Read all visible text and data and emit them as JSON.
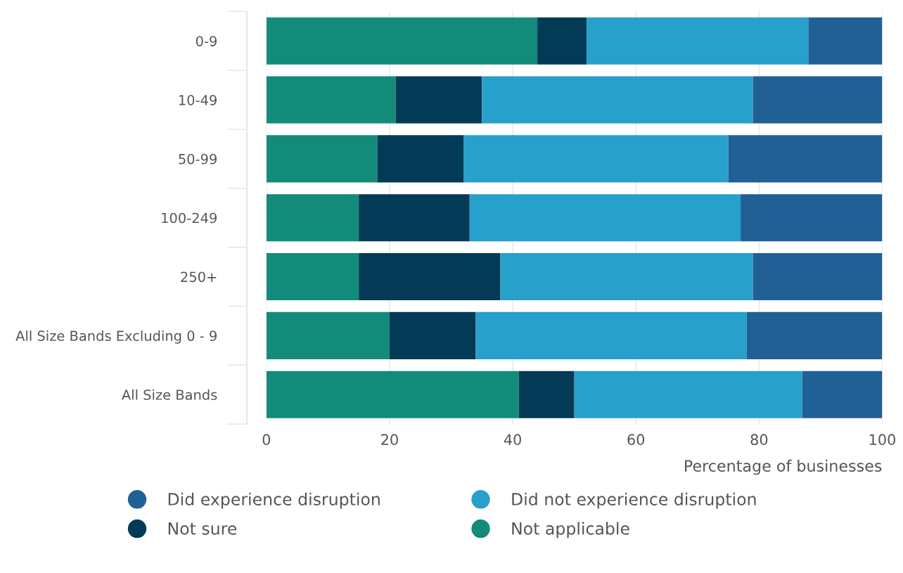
{
  "chart_data": {
    "type": "bar",
    "orientation": "horizontal",
    "stacked": true,
    "categories": [
      "0-9",
      "10-49",
      "50-99",
      "100-249",
      "250+",
      "All Size Bands Excluding 0 - 9",
      "All Size Bands"
    ],
    "series": [
      {
        "name": "Not applicable",
        "color": "#138b7a",
        "values": [
          44,
          21,
          18,
          15,
          15,
          20,
          41
        ]
      },
      {
        "name": "Not sure",
        "color": "#033a56",
        "values": [
          8,
          14,
          14,
          18,
          23,
          14,
          9
        ]
      },
      {
        "name": "Did not experience disruption",
        "color": "#28a0cc",
        "values": [
          36,
          44,
          43,
          44,
          41,
          44,
          37
        ]
      },
      {
        "name": "Did experience disruption",
        "color": "#206095",
        "values": [
          12,
          21,
          25,
          23,
          21,
          22,
          13
        ]
      }
    ],
    "xlim": [
      0,
      100
    ],
    "xticks": [
      0,
      20,
      40,
      60,
      80,
      100
    ],
    "xlabel": "Percentage of businesses",
    "grid": "x",
    "legend": "bottom",
    "marker": "circle"
  }
}
